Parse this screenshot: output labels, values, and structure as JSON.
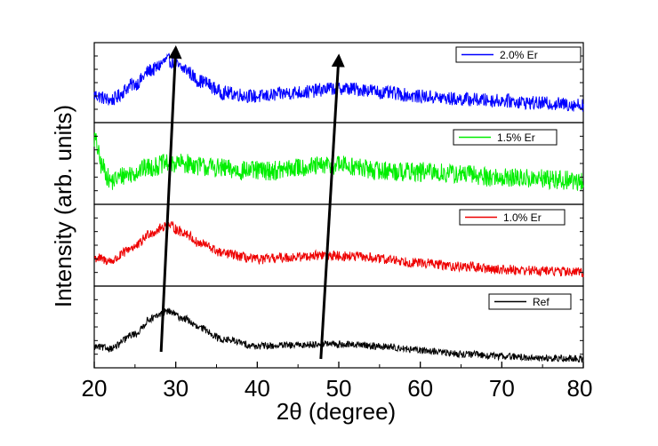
{
  "chart_data": {
    "type": "line",
    "title": "",
    "xlabel": "2θ (degree)",
    "ylabel": "Intensity (arb. units)",
    "xlim": [
      20,
      80
    ],
    "xticks": [
      20,
      30,
      40,
      50,
      60,
      70,
      80
    ],
    "tick_labels": [
      "20",
      "30",
      "40",
      "50",
      "60",
      "70",
      "80"
    ],
    "grid": false,
    "layout": "stacked panels, one series per panel, top to bottom",
    "series": [
      {
        "name": "2.0% Er",
        "color": "#0000ff",
        "legend_label": "2.0% Er",
        "noise": 0.1,
        "profile": {
          "x": [
            20,
            22,
            25,
            27,
            29,
            31,
            33,
            36,
            40,
            45,
            50,
            53,
            56,
            60,
            65,
            70,
            75,
            80
          ],
          "y": [
            0.32,
            0.25,
            0.48,
            0.68,
            0.82,
            0.7,
            0.52,
            0.35,
            0.3,
            0.36,
            0.42,
            0.4,
            0.35,
            0.3,
            0.26,
            0.24,
            0.2,
            0.18
          ]
        }
      },
      {
        "name": "1.5% Er",
        "color": "#00ee00",
        "legend_label": "1.5% Er",
        "noise": 0.14,
        "profile": {
          "x": [
            20,
            21,
            22,
            24,
            27,
            29,
            31,
            34,
            38,
            42,
            46,
            50,
            55,
            60,
            65,
            70,
            75,
            80
          ],
          "y": [
            0.85,
            0.45,
            0.25,
            0.35,
            0.45,
            0.5,
            0.5,
            0.45,
            0.4,
            0.4,
            0.45,
            0.48,
            0.4,
            0.38,
            0.35,
            0.3,
            0.28,
            0.25
          ]
        }
      },
      {
        "name": "1.0% Er",
        "color": "#ee0000",
        "legend_label": "1.0% Er",
        "noise": 0.07,
        "profile": {
          "x": [
            20,
            22,
            25,
            27,
            29,
            31,
            33,
            36,
            40,
            44,
            48,
            52,
            56,
            60,
            65,
            70,
            75,
            80
          ],
          "y": [
            0.32,
            0.28,
            0.48,
            0.68,
            0.78,
            0.68,
            0.52,
            0.38,
            0.3,
            0.33,
            0.36,
            0.34,
            0.3,
            0.25,
            0.2,
            0.16,
            0.14,
            0.12
          ]
        }
      },
      {
        "name": "Ref",
        "color": "#000000",
        "legend_label": "Ref",
        "noise": 0.05,
        "profile": {
          "x": [
            20,
            22,
            25,
            27,
            29,
            31,
            33,
            36,
            40,
            44,
            48,
            52,
            56,
            60,
            65,
            70,
            75,
            80
          ],
          "y": [
            0.22,
            0.2,
            0.4,
            0.62,
            0.72,
            0.62,
            0.48,
            0.32,
            0.23,
            0.24,
            0.26,
            0.25,
            0.22,
            0.17,
            0.12,
            0.09,
            0.06,
            0.05
          ]
        }
      }
    ],
    "annotations": [
      {
        "type": "arrow",
        "from": {
          "x": 28.2,
          "panel": 3,
          "level": 0.15
        },
        "to": {
          "x": 30.0,
          "panel": 0,
          "level": 1.0
        },
        "color": "#000000"
      },
      {
        "type": "arrow",
        "from": {
          "x": 47.8,
          "panel": 3,
          "level": 0.05
        },
        "to": {
          "x": 50.0,
          "panel": 0,
          "level": 0.88
        },
        "color": "#000000"
      }
    ]
  }
}
